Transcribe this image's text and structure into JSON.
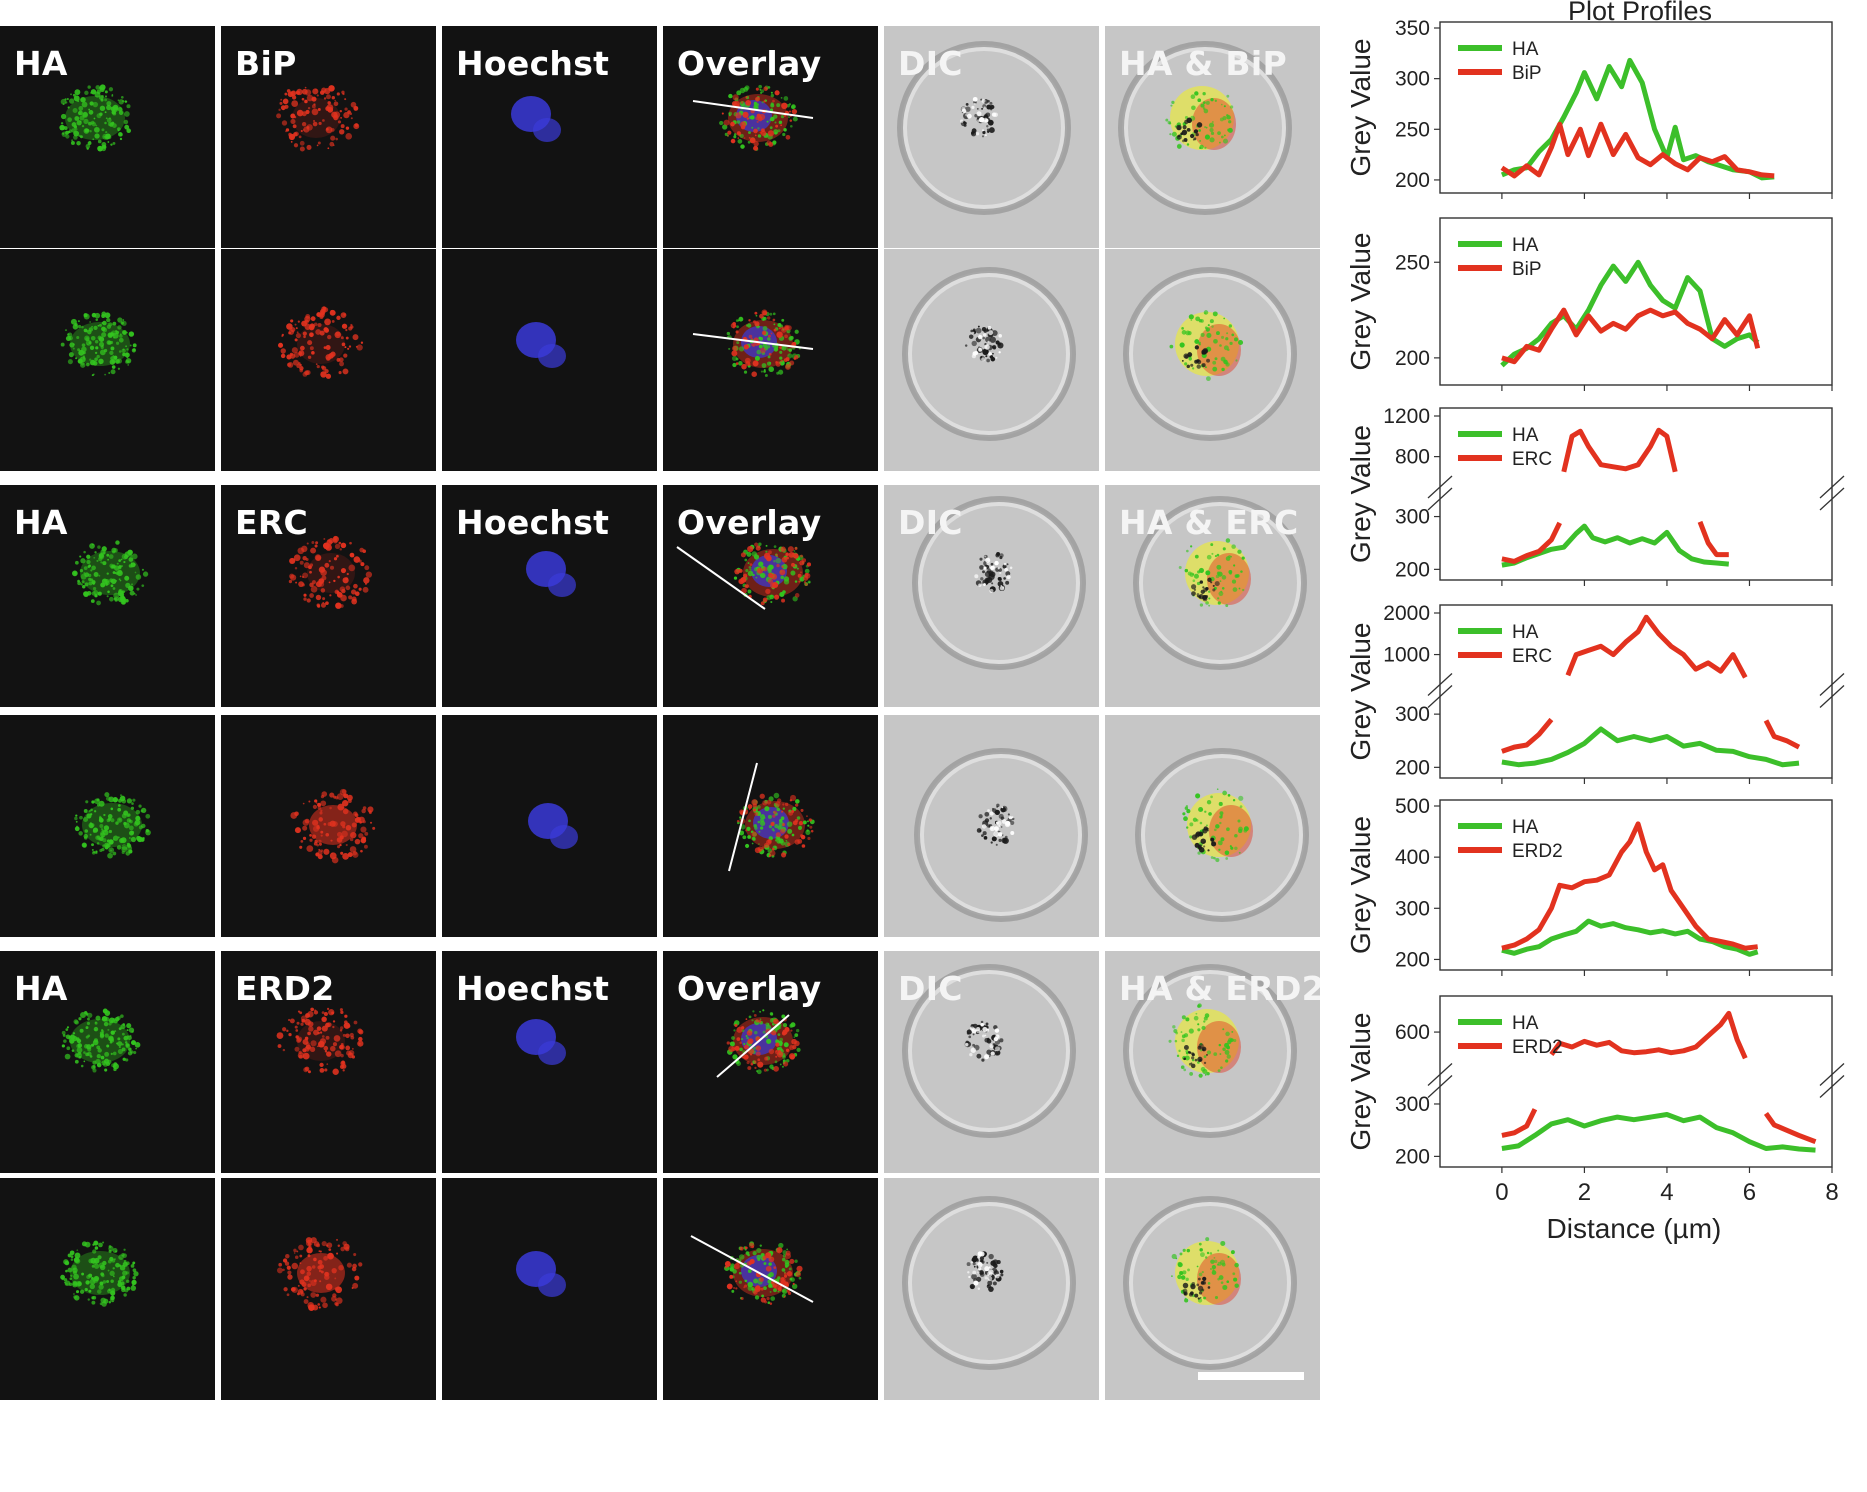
{
  "figure": {
    "rows": [
      {
        "labels": [
          "HA",
          "BiP",
          "Hoechst",
          "Overlay",
          "DIC",
          "HA & BiP"
        ],
        "show_labels": true
      },
      {
        "labels": [
          "HA",
          "BiP",
          "Hoechst",
          "Overlay",
          "DIC",
          "HA & BiP"
        ],
        "show_labels": false
      },
      {
        "labels": [
          "HA",
          "ERC",
          "Hoechst",
          "Overlay",
          "DIC",
          "HA & ERC"
        ],
        "show_labels": true
      },
      {
        "labels": [
          "HA",
          "ERC",
          "Hoechst",
          "Overlay",
          "DIC",
          "HA & ERC"
        ],
        "show_labels": false
      },
      {
        "labels": [
          "HA",
          "ERD2",
          "Hoechst",
          "Overlay",
          "DIC",
          "HA & ERD2"
        ],
        "show_labels": true
      },
      {
        "labels": [
          "HA",
          "ERD2",
          "Hoechst",
          "Overlay",
          "DIC",
          "HA & ERD2"
        ],
        "show_labels": false
      }
    ],
    "colors": {
      "ha": "#33c41f",
      "marker": "#e2321f",
      "nucleus": "#3a3ad8",
      "overlap": "#e6e64a"
    }
  },
  "chart_data": [
    {
      "type": "line",
      "title": "Plot Profiles",
      "xlabel": "Distance (µm)",
      "ylabel": "Grey Value",
      "xlim": [
        -1.5,
        8
      ],
      "xticks": [
        0,
        2,
        4,
        6,
        8
      ],
      "ylim": [
        195,
        350
      ],
      "yticks": [
        200,
        250,
        300,
        350
      ],
      "series": [
        {
          "name": "HA",
          "color": "#3cbf2a",
          "x": [
            0,
            0.3,
            0.6,
            0.9,
            1.2,
            1.5,
            1.8,
            2.0,
            2.3,
            2.6,
            2.9,
            3.1,
            3.4,
            3.7,
            4.0,
            4.2,
            4.4,
            4.7,
            5.0,
            5.3,
            5.6,
            6.0,
            6.3,
            6.6
          ],
          "y": [
            205,
            210,
            212,
            228,
            240,
            262,
            286,
            306,
            280,
            312,
            292,
            318,
            296,
            250,
            222,
            252,
            220,
            224,
            218,
            214,
            210,
            208,
            202,
            203
          ]
        },
        {
          "name": "BiP",
          "color": "#e2321f",
          "x": [
            0,
            0.3,
            0.6,
            0.9,
            1.2,
            1.4,
            1.6,
            1.9,
            2.1,
            2.4,
            2.7,
            3.0,
            3.3,
            3.6,
            3.9,
            4.2,
            4.5,
            4.8,
            5.1,
            5.4,
            5.7,
            6.0,
            6.3,
            6.6
          ],
          "y": [
            212,
            204,
            214,
            205,
            232,
            255,
            225,
            250,
            224,
            255,
            225,
            245,
            222,
            215,
            225,
            216,
            210,
            222,
            218,
            223,
            210,
            208,
            205,
            204
          ]
        }
      ]
    },
    {
      "type": "line",
      "xlim": [
        -1.5,
        8
      ],
      "xticks": [
        0,
        2,
        4,
        6,
        8
      ],
      "ylim": [
        190,
        270
      ],
      "yticks": [
        200,
        250
      ],
      "ylabel": "Grey Value",
      "series": [
        {
          "name": "HA",
          "color": "#3cbf2a",
          "x": [
            0,
            0.3,
            0.6,
            0.9,
            1.2,
            1.5,
            1.8,
            2.1,
            2.4,
            2.7,
            3.0,
            3.3,
            3.6,
            3.9,
            4.2,
            4.5,
            4.8,
            5.1,
            5.4,
            5.7,
            6.0,
            6.2
          ],
          "y": [
            196,
            202,
            205,
            210,
            218,
            222,
            215,
            225,
            238,
            248,
            240,
            250,
            238,
            230,
            226,
            242,
            235,
            210,
            206,
            210,
            212,
            208
          ]
        },
        {
          "name": "BiP",
          "color": "#e2321f",
          "x": [
            0,
            0.3,
            0.6,
            0.9,
            1.2,
            1.5,
            1.8,
            2.1,
            2.4,
            2.7,
            3.0,
            3.3,
            3.6,
            3.9,
            4.2,
            4.5,
            4.8,
            5.1,
            5.4,
            5.7,
            6.0,
            6.2
          ],
          "y": [
            200,
            198,
            206,
            204,
            215,
            225,
            212,
            222,
            214,
            218,
            215,
            222,
            225,
            222,
            224,
            218,
            215,
            210,
            220,
            212,
            222,
            205
          ]
        }
      ]
    },
    {
      "type": "line",
      "broken_axis": true,
      "xlim": [
        -1.5,
        8
      ],
      "xticks": [
        0,
        2,
        4,
        6,
        8
      ],
      "ylim_lower": [
        195,
        320
      ],
      "ylim_upper": [
        550,
        1200
      ],
      "yticks": [
        200,
        300,
        800,
        1200
      ],
      "ylabel": "Grey Value",
      "series": [
        {
          "name": "HA",
          "color": "#3cbf2a",
          "x": [
            0,
            0.3,
            0.6,
            0.9,
            1.2,
            1.5,
            1.8,
            2.0,
            2.2,
            2.5,
            2.8,
            3.1,
            3.4,
            3.7,
            4.0,
            4.3,
            4.6,
            4.9,
            5.2,
            5.5
          ],
          "y": [
            208,
            212,
            222,
            230,
            238,
            242,
            268,
            282,
            260,
            252,
            260,
            250,
            258,
            250,
            270,
            236,
            220,
            214,
            212,
            210
          ]
        },
        {
          "name": "ERC",
          "color": "#e2321f",
          "lower": {
            "x": [
              0,
              0.3,
              0.6,
              0.9,
              1.2,
              1.4
            ],
            "y": [
              220,
              215,
              226,
              234,
              256,
              288
            ]
          },
          "upper": {
            "x": [
              1.5,
              1.7,
              1.9,
              2.1,
              2.4,
              2.7,
              3.0,
              3.3,
              3.6,
              3.8,
              4.0,
              4.2
            ],
            "y": [
              650,
              1000,
              1050,
              900,
              720,
              700,
              680,
              720,
              900,
              1060,
              1000,
              650
            ]
          },
          "lower2": {
            "x": [
              4.8,
              5.0,
              5.2,
              5.5
            ],
            "y": [
              290,
              250,
              228,
              228
            ]
          }
        }
      ]
    },
    {
      "type": "line",
      "broken_axis": true,
      "xlim": [
        -1.5,
        8
      ],
      "xticks": [
        0,
        2,
        4,
        6,
        8
      ],
      "ylim_lower": [
        195,
        320
      ],
      "ylim_upper": [
        400,
        2000
      ],
      "yticks": [
        200,
        300,
        1000,
        2000
      ],
      "ylabel": "Grey Value",
      "series": [
        {
          "name": "HA",
          "color": "#3cbf2a",
          "x": [
            0,
            0.4,
            0.8,
            1.2,
            1.6,
            2.0,
            2.4,
            2.8,
            3.2,
            3.6,
            4.0,
            4.4,
            4.8,
            5.2,
            5.6,
            6.0,
            6.4,
            6.8,
            7.2
          ],
          "y": [
            210,
            205,
            208,
            215,
            228,
            245,
            272,
            250,
            258,
            250,
            258,
            240,
            245,
            232,
            230,
            220,
            215,
            205,
            208
          ]
        },
        {
          "name": "ERC",
          "color": "#e2321f",
          "lower": {
            "x": [
              0,
              0.3,
              0.6,
              0.9,
              1.2
            ],
            "y": [
              230,
              238,
              242,
              262,
              290
            ]
          },
          "upper": {
            "x": [
              1.6,
              1.8,
              2.1,
              2.4,
              2.7,
              3.0,
              3.3,
              3.5,
              3.8,
              4.1,
              4.4,
              4.7,
              5.0,
              5.3,
              5.6,
              5.9
            ],
            "y": [
              500,
              1000,
              1100,
              1200,
              1000,
              1300,
              1550,
              1900,
              1500,
              1200,
              1000,
              650,
              800,
              600,
              1000,
              450
            ]
          },
          "lower2": {
            "x": [
              6.4,
              6.6,
              6.9,
              7.2
            ],
            "y": [
              288,
              258,
              250,
              238
            ]
          }
        }
      ]
    },
    {
      "type": "line",
      "xlim": [
        -1.5,
        8
      ],
      "xticks": [
        0,
        2,
        4,
        6,
        8
      ],
      "ylim": [
        195,
        500
      ],
      "yticks": [
        200,
        300,
        400,
        500
      ],
      "ylabel": "Grey Value",
      "series": [
        {
          "name": "HA",
          "color": "#3cbf2a",
          "x": [
            0,
            0.3,
            0.6,
            0.9,
            1.2,
            1.5,
            1.8,
            2.1,
            2.4,
            2.7,
            3.0,
            3.3,
            3.6,
            3.9,
            4.2,
            4.5,
            4.8,
            5.1,
            5.4,
            5.7,
            6.0,
            6.2
          ],
          "y": [
            218,
            212,
            220,
            225,
            240,
            248,
            255,
            275,
            265,
            270,
            262,
            258,
            252,
            256,
            250,
            255,
            240,
            235,
            225,
            220,
            210,
            215
          ]
        },
        {
          "name": "ERD2",
          "color": "#e2321f",
          "x": [
            0,
            0.3,
            0.6,
            0.9,
            1.2,
            1.4,
            1.7,
            2.0,
            2.3,
            2.6,
            2.9,
            3.1,
            3.3,
            3.5,
            3.7,
            3.9,
            4.1,
            4.4,
            4.7,
            5.0,
            5.3,
            5.6,
            5.9,
            6.2
          ],
          "y": [
            222,
            228,
            240,
            258,
            300,
            345,
            340,
            352,
            355,
            365,
            410,
            430,
            465,
            410,
            375,
            385,
            335,
            300,
            265,
            240,
            235,
            230,
            222,
            225
          ]
        }
      ]
    },
    {
      "type": "line",
      "broken_axis": true,
      "xlim": [
        -1.5,
        8
      ],
      "xticks": [
        0,
        2,
        4,
        6,
        8
      ],
      "ylim_lower": [
        195,
        320
      ],
      "ylim_upper": [
        400,
        750
      ],
      "yticks": [
        200,
        300,
        600
      ],
      "ylabel": "Grey Value",
      "series": [
        {
          "name": "HA",
          "color": "#3cbf2a",
          "x": [
            0,
            0.4,
            0.8,
            1.2,
            1.6,
            2.0,
            2.4,
            2.8,
            3.2,
            3.6,
            4.0,
            4.4,
            4.8,
            5.2,
            5.6,
            6.0,
            6.4,
            6.8,
            7.2,
            7.6
          ],
          "y": [
            215,
            220,
            240,
            262,
            270,
            258,
            268,
            275,
            270,
            275,
            280,
            268,
            275,
            255,
            245,
            228,
            215,
            218,
            214,
            212
          ]
        },
        {
          "name": "ERD2",
          "color": "#e2321f",
          "lower": {
            "x": [
              0,
              0.3,
              0.6,
              0.8
            ],
            "y": [
              240,
              245,
              258,
              290
            ]
          },
          "upper": {
            "x": [
              1.2,
              1.4,
              1.7,
              2.0,
              2.3,
              2.6,
              2.9,
              3.2,
              3.5,
              3.8,
              4.1,
              4.4,
              4.7,
              5.0,
              5.3,
              5.5,
              5.7,
              5.9
            ],
            "y": [
              480,
              540,
              520,
              550,
              530,
              545,
              500,
              490,
              495,
              505,
              490,
              500,
              520,
              580,
              640,
              700,
              560,
              460
            ]
          },
          "lower2": {
            "x": [
              6.4,
              6.6,
              6.9,
              7.2,
              7.6
            ],
            "y": [
              282,
              260,
              250,
              240,
              228
            ]
          }
        }
      ]
    }
  ],
  "plot_title": "Plot Profiles",
  "xaxis_label": "Distance (µm)",
  "xaxis_ticks": [
    "0",
    "2",
    "4",
    "6",
    "8"
  ]
}
